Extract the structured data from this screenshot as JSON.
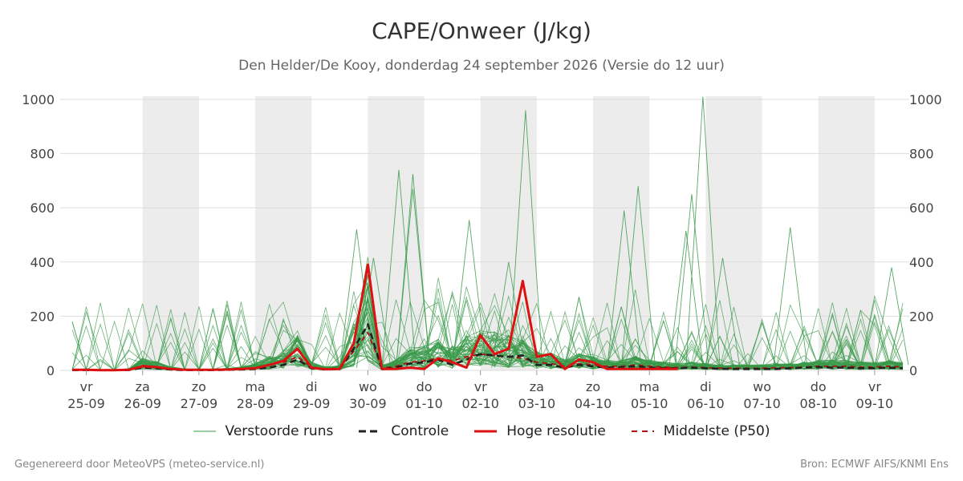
{
  "header": {
    "title": "CAPE/Onweer (J/kg)",
    "subtitle": "Den Helder/De Kooy, donderdag 24 september 2026 (Versie do 12 uur)"
  },
  "footer": {
    "left": "Gegenereerd door MeteoVPS (meteo-service.nl)",
    "right": "Bron: ECMWF AIFS/KNMI Ens"
  },
  "colors": {
    "ensemble": "#3a9a4a",
    "control": "#222222",
    "hires": "#dd1111",
    "median": "#aa1111",
    "shade": "#ececec",
    "grid": "#dddddd"
  },
  "chart_data": {
    "type": "line",
    "title": "CAPE/Onweer (J/kg)",
    "ylim": [
      0,
      1000
    ],
    "yticks": [
      0,
      200,
      400,
      600,
      800,
      1000
    ],
    "x_unit": "days since 25-09",
    "xlim": [
      -0.25,
      14.5
    ],
    "xticks": [
      {
        "day": "vr",
        "date": "25-09"
      },
      {
        "day": "za",
        "date": "26-09"
      },
      {
        "day": "zo",
        "date": "27-09"
      },
      {
        "day": "ma",
        "date": "28-09"
      },
      {
        "day": "di",
        "date": "29-09"
      },
      {
        "day": "wo",
        "date": "30-09"
      },
      {
        "day": "do",
        "date": "01-10"
      },
      {
        "day": "vr",
        "date": "02-10"
      },
      {
        "day": "za",
        "date": "03-10"
      },
      {
        "day": "zo",
        "date": "04-10"
      },
      {
        "day": "ma",
        "date": "05-10"
      },
      {
        "day": "di",
        "date": "06-10"
      },
      {
        "day": "wo",
        "date": "07-10"
      },
      {
        "day": "do",
        "date": "08-10"
      },
      {
        "day": "vr",
        "date": "09-10"
      }
    ],
    "shaded_days": [
      1,
      3,
      5,
      7,
      9,
      11,
      13
    ],
    "legend": [
      {
        "key": "ensemble",
        "label": "Verstoorde runs",
        "style": "thin"
      },
      {
        "key": "control",
        "label": "Controle",
        "style": "dash-bold"
      },
      {
        "key": "hires",
        "label": "Hoge resolutie",
        "style": "solid-bold"
      },
      {
        "key": "median",
        "label": "Middelste (P50)",
        "style": "dash"
      }
    ],
    "ensemble_peaks": [
      {
        "x": 5.55,
        "y": 740
      },
      {
        "x": 5.8,
        "y": 725
      },
      {
        "x": 5.8,
        "y": 670
      },
      {
        "x": 7.8,
        "y": 960
      },
      {
        "x": 9.8,
        "y": 680
      },
      {
        "x": 10.95,
        "y": 1010
      },
      {
        "x": 10.75,
        "y": 650
      },
      {
        "x": 7.5,
        "y": 400
      },
      {
        "x": 6.8,
        "y": 555
      },
      {
        "x": 4.8,
        "y": 520
      },
      {
        "x": 5.1,
        "y": 415
      },
      {
        "x": 12.5,
        "y": 528
      },
      {
        "x": 9.55,
        "y": 590
      },
      {
        "x": 14.3,
        "y": 380
      },
      {
        "x": 11.3,
        "y": 415
      },
      {
        "x": 10.65,
        "y": 515
      }
    ],
    "series": [
      {
        "name": "Hoge resolutie",
        "x": [
          -0.25,
          0,
          0.25,
          0.5,
          0.75,
          1,
          1.25,
          1.5,
          1.75,
          2,
          2.25,
          2.5,
          2.75,
          3,
          3.25,
          3.5,
          3.75,
          4,
          4.25,
          4.5,
          4.75,
          5,
          5.25,
          5.5,
          5.75,
          6,
          6.25,
          6.5,
          6.75,
          7,
          7.25,
          7.5,
          7.75,
          8,
          8.25,
          8.5,
          8.75,
          9,
          9.25,
          9.5,
          9.75,
          10,
          10.25,
          10.5
        ],
        "y": [
          2,
          2,
          1,
          1,
          2,
          15,
          12,
          5,
          2,
          2,
          2,
          3,
          5,
          8,
          20,
          35,
          80,
          10,
          4,
          5,
          100,
          390,
          5,
          5,
          10,
          5,
          45,
          30,
          10,
          130,
          60,
          80,
          330,
          50,
          60,
          5,
          40,
          30,
          5,
          5,
          5,
          5,
          5,
          5
        ]
      },
      {
        "name": "Controle",
        "x": [
          -0.25,
          0,
          0.25,
          0.5,
          0.75,
          1,
          1.25,
          1.5,
          1.75,
          2,
          2.25,
          2.5,
          2.75,
          3,
          3.25,
          3.5,
          3.75,
          4,
          4.25,
          4.5,
          4.75,
          5,
          5.25,
          5.5,
          5.75,
          6,
          6.25,
          6.5,
          6.75,
          7,
          7.25,
          7.5,
          7.75,
          8,
          8.25,
          8.5,
          8.75,
          9,
          9.25,
          9.5,
          9.75,
          10,
          10.25,
          10.5,
          10.75,
          11,
          11.25,
          11.5,
          11.75,
          12,
          12.25,
          12.5,
          12.75,
          13,
          13.25,
          13.5,
          13.75,
          14,
          14.25,
          14.5
        ],
        "y": [
          1,
          1,
          1,
          1,
          1,
          10,
          8,
          3,
          1,
          1,
          1,
          2,
          3,
          5,
          10,
          20,
          40,
          8,
          3,
          5,
          80,
          170,
          5,
          10,
          25,
          30,
          40,
          20,
          40,
          60,
          55,
          50,
          55,
          20,
          20,
          10,
          20,
          15,
          10,
          12,
          15,
          10,
          8,
          8,
          10,
          8,
          6,
          5,
          5,
          5,
          5,
          8,
          10,
          12,
          10,
          10,
          8,
          8,
          10,
          8
        ]
      },
      {
        "name": "Middelste (P50)",
        "x": [
          -0.25,
          0,
          0.25,
          0.5,
          0.75,
          1,
          1.25,
          1.5,
          1.75,
          2,
          2.25,
          2.5,
          2.75,
          3,
          3.25,
          3.5,
          3.75,
          4,
          4.25,
          4.5,
          4.75,
          5,
          5.25,
          5.5,
          5.75,
          6,
          6.25,
          6.5,
          6.75,
          7,
          7.25,
          7.5,
          7.75,
          8,
          8.25,
          8.5,
          8.75,
          9,
          9.25,
          9.5,
          9.75,
          10,
          10.25,
          10.5,
          10.75,
          11,
          11.25,
          11.5,
          11.75,
          12,
          12.25,
          12.5,
          12.75,
          13,
          13.25,
          13.5,
          13.75,
          14,
          14.25,
          14.5
        ],
        "y": [
          2,
          2,
          1,
          1,
          2,
          18,
          14,
          5,
          2,
          2,
          2,
          3,
          5,
          10,
          20,
          30,
          50,
          12,
          5,
          8,
          70,
          140,
          8,
          15,
          30,
          35,
          45,
          35,
          50,
          60,
          55,
          50,
          45,
          30,
          25,
          15,
          25,
          20,
          15,
          15,
          20,
          15,
          12,
          10,
          12,
          10,
          8,
          8,
          8,
          8,
          10,
          10,
          12,
          15,
          15,
          15,
          12,
          12,
          15,
          12
        ]
      }
    ]
  }
}
